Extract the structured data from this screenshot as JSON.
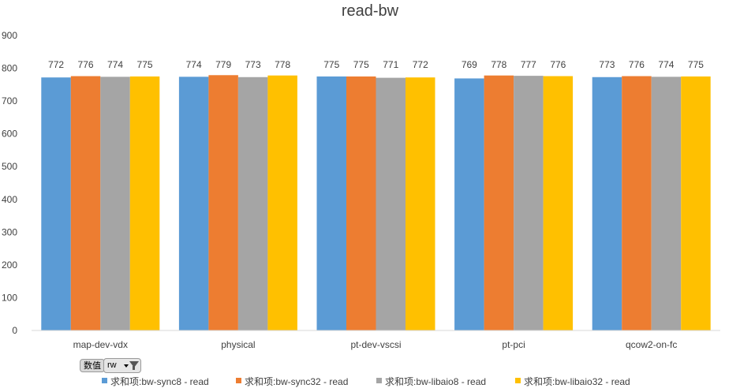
{
  "chart_data": {
    "type": "bar",
    "title": "read-bw",
    "categories": [
      "map-dev-vdx",
      "physical",
      "pt-dev-vscsi",
      "pt-pci",
      "qcow2-on-fc"
    ],
    "series": [
      {
        "name": "求和项:bw-sync8 - read",
        "color": "#5b9bd5",
        "values": [
          772,
          774,
          775,
          769,
          773
        ]
      },
      {
        "name": "求和项:bw-sync32 - read",
        "color": "#ed7d31",
        "values": [
          776,
          779,
          775,
          778,
          776
        ]
      },
      {
        "name": "求和项:bw-libaio8 - read",
        "color": "#a5a5a5",
        "values": [
          774,
          773,
          771,
          777,
          774
        ]
      },
      {
        "name": "求和项:bw-libaio32 - read",
        "color": "#ffc000",
        "values": [
          775,
          778,
          772,
          776,
          775
        ]
      }
    ],
    "ylim": [
      0,
      900
    ],
    "yticks": [
      0,
      100,
      200,
      300,
      400,
      500,
      600,
      700,
      800,
      900
    ],
    "grid": false,
    "legend_position": "bottom",
    "data_labels": true
  },
  "pivot": {
    "values_button": "数值",
    "filter_field": "rw"
  }
}
